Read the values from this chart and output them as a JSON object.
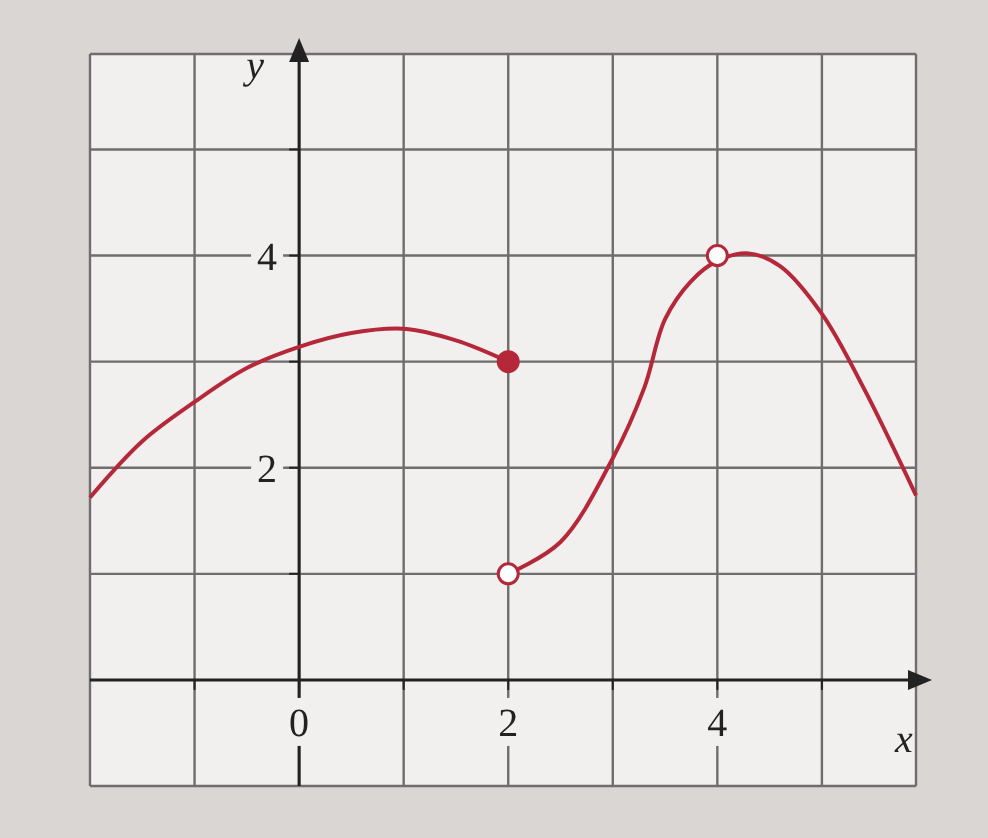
{
  "chart_data": {
    "type": "line",
    "xlabel": "x",
    "ylabel": "y",
    "xlim": [
      -2,
      5.9
    ],
    "ylim": [
      -1,
      5.9
    ],
    "xticks": [
      {
        "value": -1,
        "label": null
      },
      {
        "value": 0,
        "label": "0"
      },
      {
        "value": 1,
        "label": null
      },
      2,
      {
        "value": 3,
        "label": null
      },
      4,
      {
        "value": 5,
        "label": null
      }
    ],
    "yticks": [
      {
        "value": 1,
        "label": null
      },
      2,
      {
        "value": 3,
        "label": null
      },
      4,
      {
        "value": 5,
        "label": null
      }
    ],
    "grid": true,
    "series": [
      {
        "color": "#b5283a",
        "x": [
          -2,
          -1.5,
          -1,
          -0.5,
          0,
          0.5,
          1,
          1.5,
          2
        ],
        "values": [
          1.72,
          2.25,
          2.62,
          2.94,
          3.14,
          3.27,
          3.31,
          3.2,
          3
        ]
      },
      {
        "color": "#b5283a",
        "x": [
          2,
          2.5,
          3,
          3.3,
          3.5,
          3.75,
          4,
          4.3,
          4.6,
          5,
          5.4,
          5.9
        ],
        "values": [
          1,
          1.3,
          2.09,
          2.75,
          3.4,
          3.76,
          3.95,
          4.02,
          3.9,
          3.45,
          2.75,
          1.74
        ]
      },
      {
        "type": "scatter",
        "marker": "circle",
        "color": "#b5283a",
        "x": [
          2
        ],
        "values": [
          3
        ]
      },
      {
        "type": "scatter",
        "marker": "circle",
        "color": "#b5283a",
        "colors": [
          "#ffffff",
          "#ffffff"
        ],
        "x": [
          2,
          4
        ],
        "values": [
          1,
          4
        ]
      }
    ]
  }
}
